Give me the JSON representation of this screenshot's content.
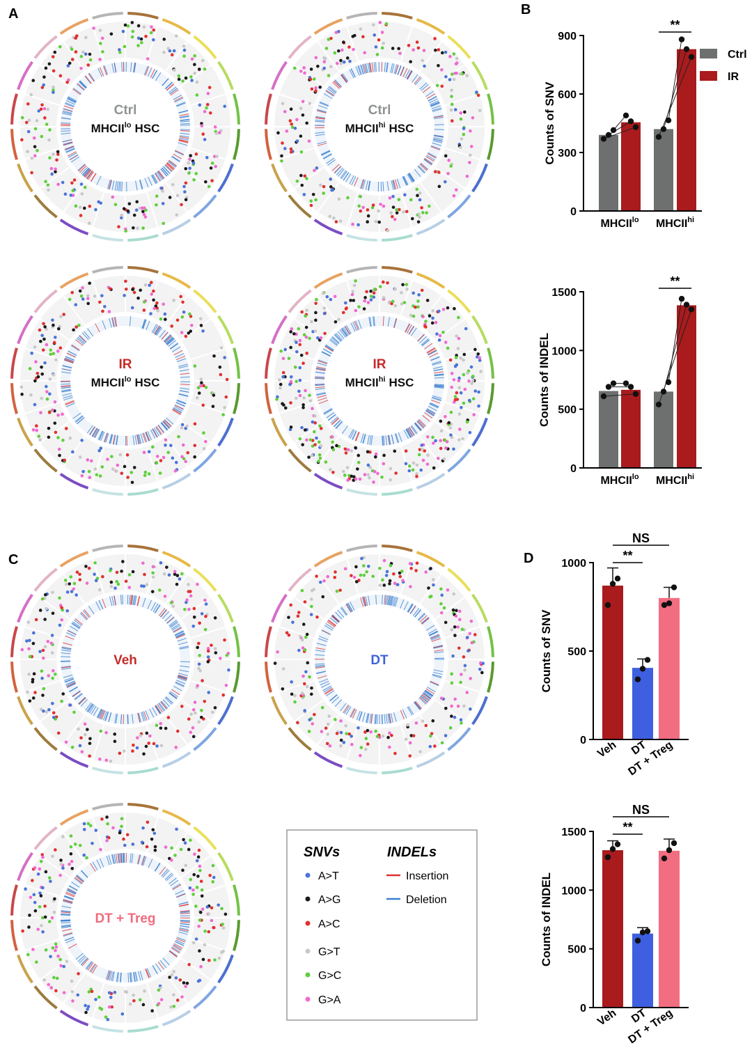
{
  "panel_labels": [
    "A",
    "B",
    "C",
    "D"
  ],
  "circos": [
    {
      "label": "Ctrl",
      "label_color": "#8e9392",
      "subtitle": "MHCII",
      "superscript": "lo",
      "suffix": "HSC"
    },
    {
      "label": "Ctrl",
      "label_color": "#8e9392",
      "subtitle": "MHCII",
      "superscript": "hi",
      "suffix": "HSC"
    },
    {
      "label": "IR",
      "label_color": "#c62a2a",
      "subtitle": "MHCII",
      "superscript": "lo",
      "suffix": "HSC"
    },
    {
      "label": "IR",
      "label_color": "#c62a2a",
      "subtitle": "MHCII",
      "superscript": "hi",
      "suffix": "HSC"
    },
    {
      "label": "Veh",
      "label_color": "#c62a2a"
    },
    {
      "label": "DT",
      "label_color": "#3f63d8"
    },
    {
      "label": "DT + Treg",
      "label_color": "#f06b7e"
    }
  ],
  "legend": {
    "snv_title": "SNVs",
    "indel_title": "INDELs",
    "snvs": [
      {
        "name": "A>T",
        "color": "#4a74d9"
      },
      {
        "name": "A>G",
        "color": "#1a1a1a"
      },
      {
        "name": "A>C",
        "color": "#e0312f"
      },
      {
        "name": "G>T",
        "color": "#c8c8c8"
      },
      {
        "name": "G>C",
        "color": "#5fcf3c"
      },
      {
        "name": "G>A",
        "color": "#f06ad0"
      }
    ],
    "indels": [
      {
        "name": "Insertion",
        "color": "#e0312f"
      },
      {
        "name": "Deletion",
        "color": "#3a7fd0"
      }
    ]
  },
  "chart_data": [
    {
      "type": "bar",
      "ylabel": "Counts of SNV",
      "categories": [
        "MHCII",
        "MHCII"
      ],
      "category_superscripts": [
        "lo",
        "hi"
      ],
      "series": [
        {
          "name": "Ctrl",
          "color": "#6e706f",
          "values": [
            390,
            420
          ],
          "points": [
            [
              370,
              390,
              415
            ],
            [
              380,
              420,
              465
            ]
          ]
        },
        {
          "name": "IR",
          "color": "#a91b1d",
          "values": [
            455,
            830
          ],
          "points": [
            [
              430,
              460,
              490
            ],
            [
              790,
              830,
              880
            ]
          ]
        }
      ],
      "ylim": [
        0,
        900
      ],
      "yticks": [
        0,
        300,
        600,
        900
      ],
      "annotations": [
        "**"
      ],
      "legend": "upper right"
    },
    {
      "type": "bar",
      "ylabel": "Counts of INDEL",
      "categories": [
        "MHCII",
        "MHCII"
      ],
      "category_superscripts": [
        "lo",
        "hi"
      ],
      "series": [
        {
          "name": "Ctrl",
          "color": "#6e706f",
          "values": [
            655,
            650
          ],
          "points": [
            [
              610,
              690,
              720
            ],
            [
              540,
              650,
              730
            ]
          ]
        },
        {
          "name": "IR",
          "color": "#a91b1d",
          "values": [
            665,
            1385
          ],
          "points": [
            [
              630,
              690,
              720
            ],
            [
              1350,
              1390,
              1440
            ]
          ]
        }
      ],
      "ylim": [
        0,
        1500
      ],
      "yticks": [
        0,
        500,
        1000,
        1500
      ],
      "annotations": [
        "**"
      ]
    },
    {
      "type": "bar",
      "ylabel": "Counts of SNV",
      "categories": [
        "Veh",
        "DT",
        "DT + Treg"
      ],
      "colors": [
        "#a91b1d",
        "#3d5fe0",
        "#f26d80"
      ],
      "values": [
        870,
        405,
        800
      ],
      "errors": [
        100,
        50,
        60
      ],
      "points": [
        [
          760,
          880,
          910
        ],
        [
          340,
          400,
          450
        ],
        [
          760,
          770,
          860
        ]
      ],
      "ylim": [
        0,
        1000
      ],
      "yticks": [
        0,
        500,
        1000
      ],
      "annotations": [
        "NS",
        "**"
      ]
    },
    {
      "type": "bar",
      "ylabel": "Counts of INDEL",
      "categories": [
        "Veh",
        "DT",
        "DT + Treg"
      ],
      "colors": [
        "#a91b1d",
        "#3d5fe0",
        "#f26d80"
      ],
      "values": [
        1340,
        630,
        1335
      ],
      "errors": [
        80,
        50,
        100
      ],
      "points": [
        [
          1280,
          1350,
          1390
        ],
        [
          570,
          640,
          650
        ],
        [
          1270,
          1340,
          1400
        ]
      ],
      "ylim": [
        0,
        1500
      ],
      "yticks": [
        0,
        500,
        1000,
        1500
      ],
      "annotations": [
        "NS",
        "**"
      ]
    }
  ]
}
